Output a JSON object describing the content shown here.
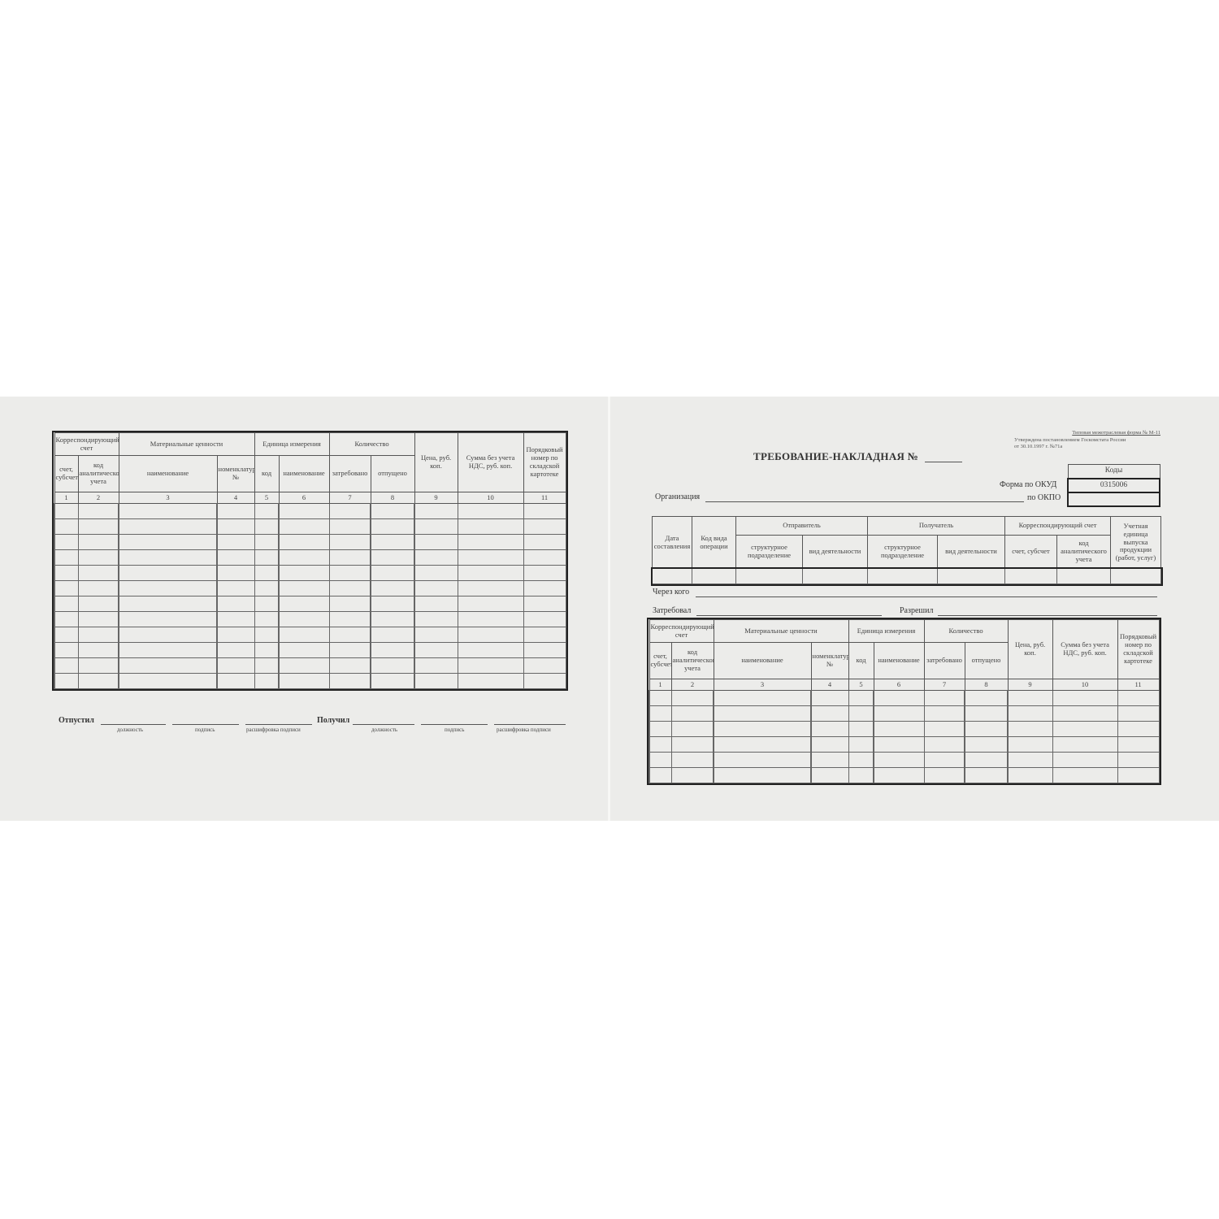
{
  "left_page": {
    "table": {
      "groups": [
        "Корреспондирующий счет",
        "Материальные ценности",
        "Единица измерения",
        "Количество",
        "Цена, руб. коп.",
        "Сумма без учета НДС, руб. коп.",
        "Порядковый номер по складской картотеке"
      ],
      "subheaders": [
        "счет, субсчет",
        "код аналитического учета",
        "наименование",
        "номенклатурный №",
        "код",
        "наименование",
        "затребовано",
        "отпущено"
      ],
      "numbers": [
        "1",
        "2",
        "3",
        "4",
        "5",
        "6",
        "7",
        "8",
        "9",
        "10",
        "11"
      ]
    },
    "signatures": {
      "released_label": "Отпустил",
      "received_label": "Получил",
      "captions": [
        "должность",
        "подпись",
        "расшифровка подписи",
        "должность",
        "подпись",
        "расшифровка подписи"
      ]
    }
  },
  "right_page": {
    "form_note": [
      "Типовая межотраслевая форма № М-11",
      "Утверждена постановлением Госкомстата России",
      "от 30.10.1997 г. №71а"
    ],
    "title": "ТРЕБОВАНИЕ-НАКЛАДНАЯ №",
    "codes": {
      "header": "Коды",
      "okud_label": "Форма по ОКУД",
      "okud_value": "0315006",
      "okpo_label": "по ОКПО"
    },
    "organization_label": "Организация",
    "info_table": {
      "headers": [
        "Дата составления",
        "Код вида операции",
        "Отправитель",
        "Получатель",
        "Корреспондирующий счет",
        "Учетная единица выпуска продукции (работ, услуг)"
      ],
      "subheaders": [
        "структурное подразделение",
        "вид деятельности",
        "структурное подразделение",
        "вид деятельности",
        "счет, субсчет",
        "код аналитического учета"
      ]
    },
    "through_label": "Через кого",
    "requested_label": "Затребовал",
    "allowed_label": "Разрешил",
    "table": {
      "groups": [
        "Корреспондирующий счет",
        "Материальные ценности",
        "Единица измерения",
        "Количество",
        "Цена, руб. коп.",
        "Сумма без учета НДС, руб. коп.",
        "Порядковый номер по складской картотеке"
      ],
      "subheaders": [
        "счет, субсчет",
        "код аналитического учета",
        "наименование",
        "номенклатурный №",
        "код",
        "наименование",
        "затребовано",
        "отпущено"
      ],
      "numbers": [
        "1",
        "2",
        "3",
        "4",
        "5",
        "6",
        "7",
        "8",
        "9",
        "10",
        "11"
      ]
    }
  }
}
